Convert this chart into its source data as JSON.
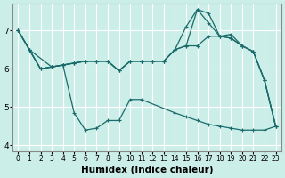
{
  "xlabel": "Humidex (Indice chaleur)",
  "background_color": "#cceee8",
  "grid_color": "#ffffff",
  "line_color": "#1a6b6b",
  "xlim": [
    -0.5,
    23.5
  ],
  "ylim": [
    3.85,
    7.7
  ],
  "yticks": [
    4,
    5,
    6,
    7
  ],
  "xticks": [
    0,
    1,
    2,
    3,
    4,
    5,
    6,
    7,
    8,
    9,
    10,
    11,
    12,
    13,
    14,
    15,
    16,
    17,
    18,
    19,
    20,
    21,
    22,
    23
  ],
  "line1_x": [
    0,
    1,
    2,
    3,
    4,
    5,
    6,
    7,
    8,
    9,
    10,
    11,
    12,
    13,
    14,
    15,
    16,
    17,
    18,
    19,
    20,
    21,
    22,
    23
  ],
  "line1_y": [
    7.0,
    6.5,
    6.0,
    6.05,
    6.1,
    6.15,
    6.2,
    6.2,
    6.2,
    5.95,
    6.2,
    6.2,
    6.2,
    6.2,
    6.5,
    6.6,
    7.55,
    7.45,
    6.85,
    6.8,
    6.6,
    6.45,
    5.7,
    4.5
  ],
  "line2_x": [
    0,
    1,
    2,
    3,
    4,
    5,
    6,
    7,
    8,
    9,
    10,
    11,
    12,
    13,
    14,
    15,
    16,
    17,
    18,
    19,
    20,
    21,
    22,
    23
  ],
  "line2_y": [
    7.0,
    6.5,
    6.0,
    6.05,
    6.1,
    6.15,
    6.2,
    6.2,
    6.2,
    5.95,
    6.2,
    6.2,
    6.2,
    6.2,
    6.5,
    7.1,
    7.55,
    7.2,
    6.85,
    6.9,
    6.6,
    6.45,
    5.7,
    4.5
  ],
  "line3_x": [
    0,
    1,
    2,
    3,
    4,
    5,
    6,
    7,
    8,
    9,
    10,
    11,
    12,
    13,
    14,
    15,
    16,
    17,
    18,
    19,
    20,
    21,
    22,
    23
  ],
  "line3_y": [
    7.0,
    6.5,
    6.0,
    6.05,
    6.1,
    6.15,
    6.2,
    6.2,
    6.2,
    5.95,
    6.2,
    6.2,
    6.2,
    6.2,
    6.5,
    6.6,
    6.6,
    6.85,
    6.85,
    6.8,
    6.6,
    6.45,
    5.7,
    4.5
  ],
  "line4_x": [
    0,
    1,
    3,
    4,
    5,
    6,
    7,
    8,
    9,
    10,
    11,
    14,
    15,
    16,
    17,
    18,
    19,
    20,
    21,
    22,
    23
  ],
  "line4_y": [
    7.0,
    6.5,
    6.05,
    6.1,
    4.85,
    4.4,
    4.45,
    4.65,
    4.65,
    5.2,
    5.2,
    4.85,
    4.75,
    4.65,
    4.55,
    4.5,
    4.45,
    4.4,
    4.4,
    4.4,
    4.5
  ],
  "xtick_fontsize": 5.5,
  "ytick_fontsize": 6.5,
  "xlabel_fontsize": 7.5
}
